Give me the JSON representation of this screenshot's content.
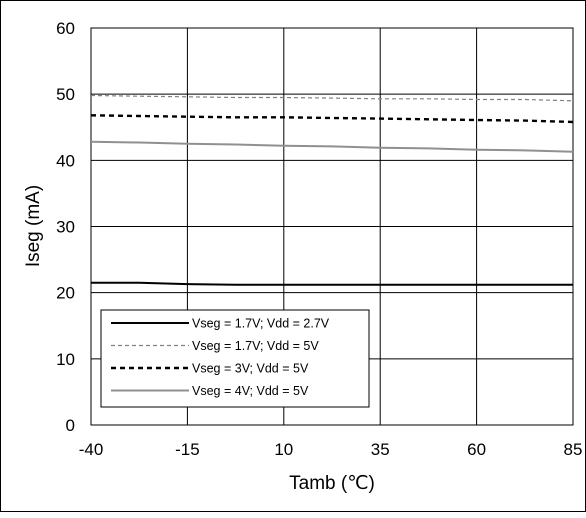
{
  "chart_data": {
    "type": "line",
    "title": "",
    "xlabel": "Tamb (℃)",
    "ylabel": "Iseg (mA)",
    "x": [
      -40,
      -27.5,
      -15,
      -2.5,
      10,
      22.5,
      35,
      47.5,
      60,
      72.5,
      85
    ],
    "x_ticks": [
      "-40",
      "-15",
      "10",
      "35",
      "60",
      "85"
    ],
    "y_ticks": [
      "0",
      "10",
      "20",
      "30",
      "40",
      "50",
      "60"
    ],
    "xlim": [
      -40,
      85
    ],
    "ylim": [
      0,
      60
    ],
    "grid": true,
    "legend_position": "bottom-left",
    "series": [
      {
        "name": "Vseg = 1.7V; Vdd = 2.7V",
        "style": "solid",
        "color": "#000000",
        "values": [
          21.5,
          21.5,
          21.3,
          21.2,
          21.2,
          21.2,
          21.2,
          21.2,
          21.2,
          21.2,
          21.2
        ]
      },
      {
        "name": "Vseg = 1.7V; Vdd = 5V",
        "style": "dashed-fine",
        "color": "#808080",
        "values": [
          49.8,
          49.7,
          49.6,
          49.5,
          49.5,
          49.4,
          49.3,
          49.3,
          49.2,
          49.2,
          49.0
        ]
      },
      {
        "name": "Vseg = 3V; Vdd = 5V",
        "style": "dashed-bold",
        "color": "#000000",
        "values": [
          46.8,
          46.7,
          46.6,
          46.5,
          46.5,
          46.4,
          46.3,
          46.2,
          46.1,
          46.0,
          45.8
        ]
      },
      {
        "name": "Vseg = 4V; Vdd = 5V",
        "style": "solid",
        "color": "#909090",
        "values": [
          42.8,
          42.7,
          42.5,
          42.4,
          42.2,
          42.1,
          41.9,
          41.8,
          41.6,
          41.5,
          41.3
        ]
      }
    ]
  }
}
